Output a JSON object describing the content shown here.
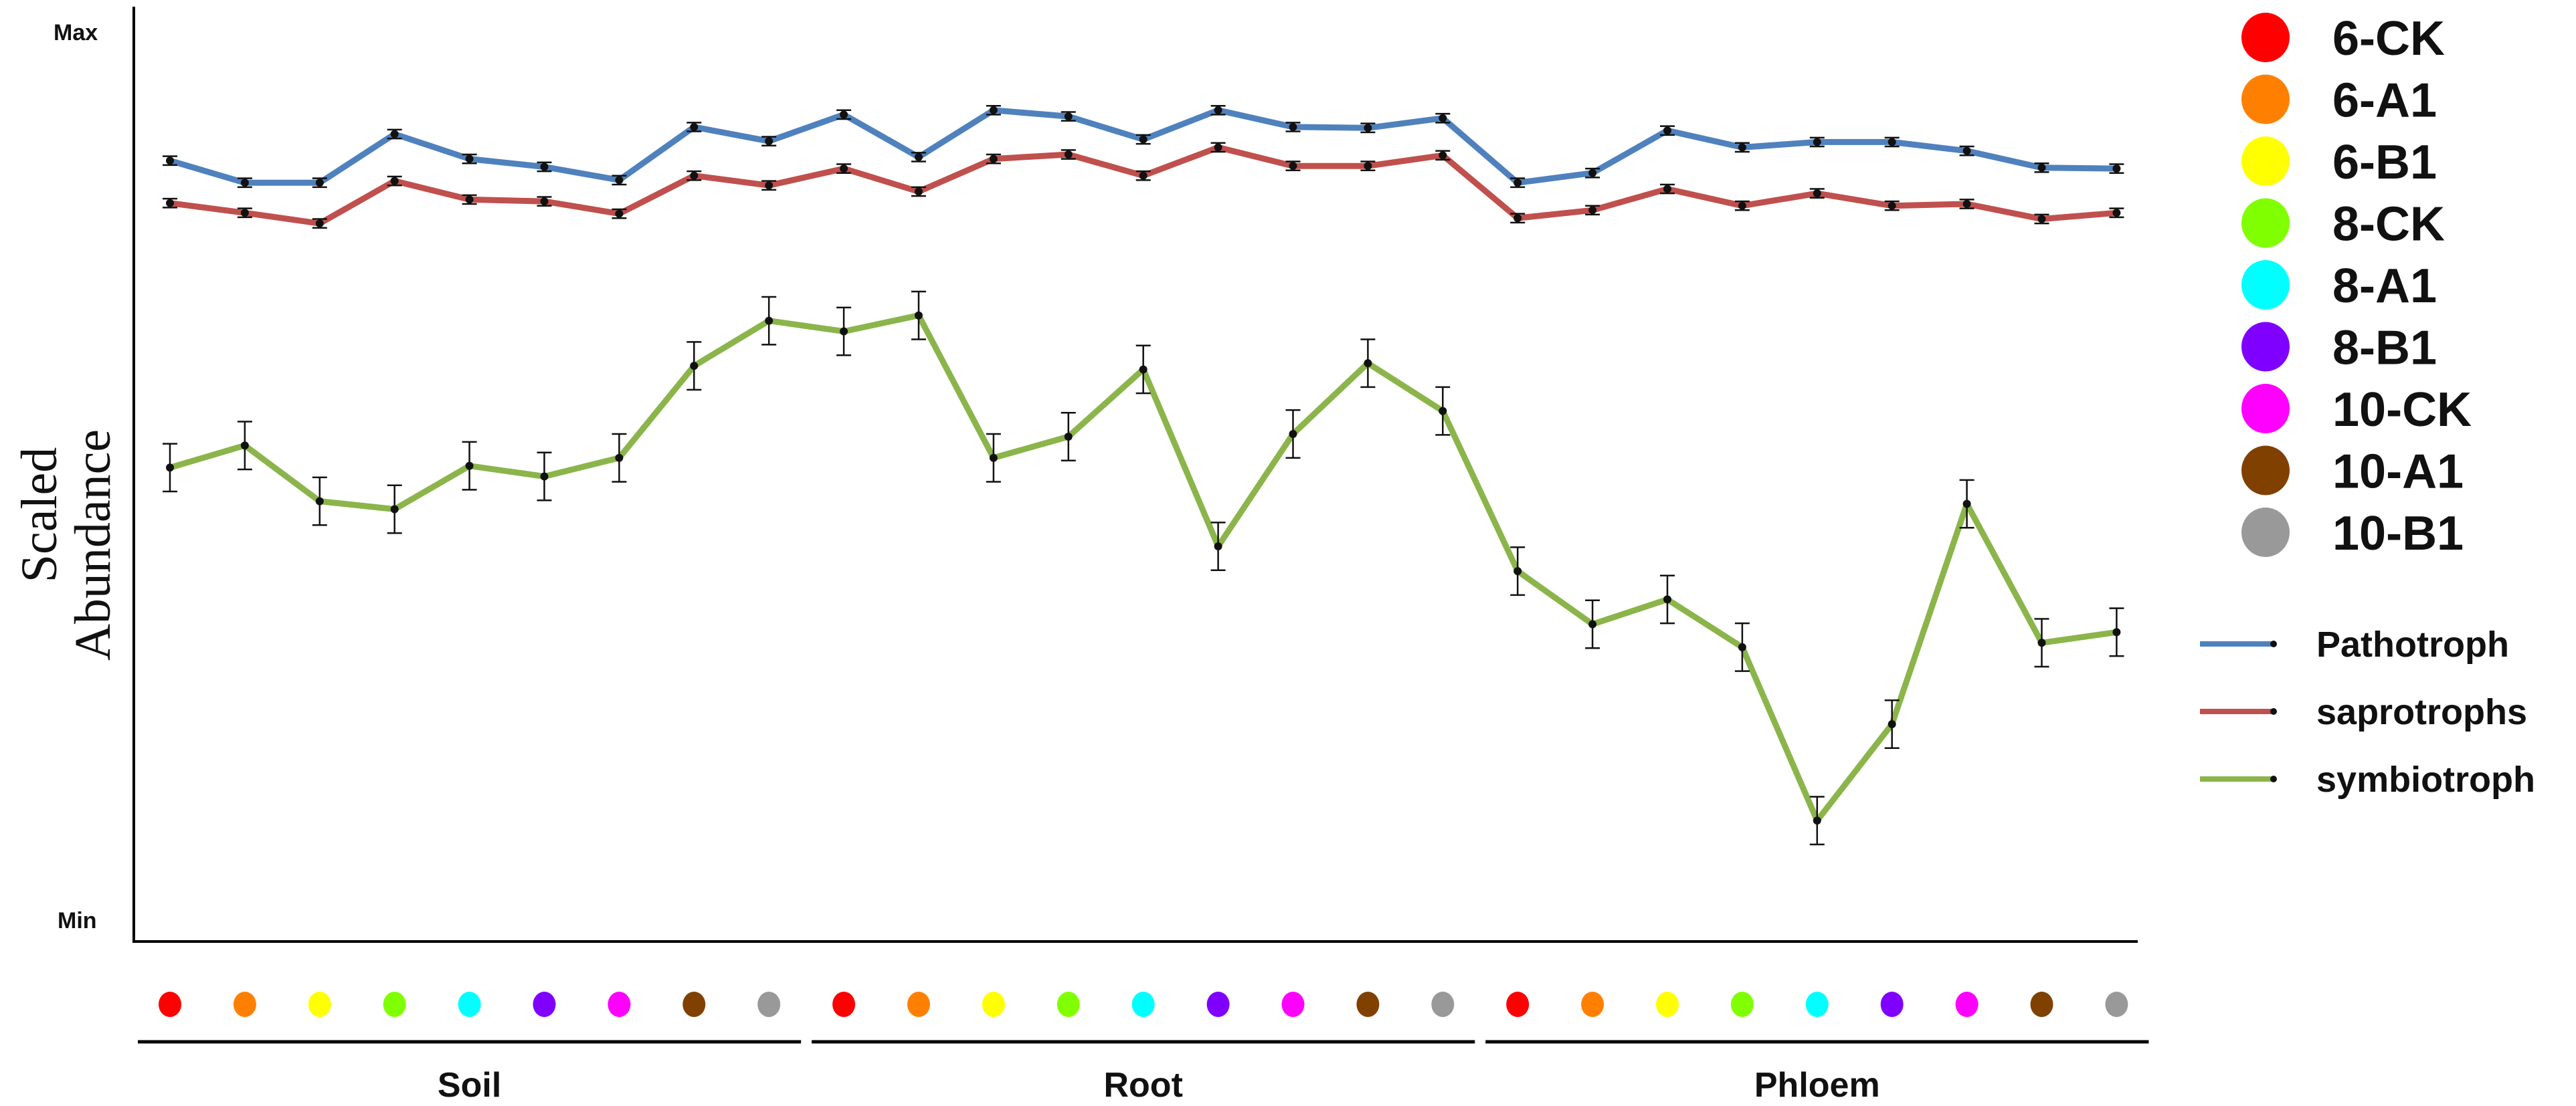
{
  "chart_data": {
    "type": "line",
    "ylabel_lines": [
      "Scaled",
      "Abundance"
    ],
    "y_ticks": {
      "max": "Max",
      "min": "Min"
    },
    "ylim": [
      0,
      100
    ],
    "grid": false,
    "legend_placement": "right",
    "samples": [
      {
        "label": "6-CK",
        "color": "#ff0000"
      },
      {
        "label": "6-A1",
        "color": "#ff8000"
      },
      {
        "label": "6-B1",
        "color": "#ffff00"
      },
      {
        "label": "8-CK",
        "color": "#80ff00"
      },
      {
        "label": "8-A1",
        "color": "#00ffff"
      },
      {
        "label": "8-B1",
        "color": "#8000ff"
      },
      {
        "label": "10-CK",
        "color": "#ff00ff"
      },
      {
        "label": "10-A1",
        "color": "#804000"
      },
      {
        "label": "10-B1",
        "color": "#999999"
      }
    ],
    "groups": [
      "Soil",
      "Root",
      "Phloem"
    ],
    "series": [
      {
        "name": "Pathotroph",
        "color": "#4f81bd",
        "values": [
          86,
          83.5,
          83.5,
          89,
          86.2,
          85.3,
          83.8,
          89.8,
          88.2,
          91.2,
          86.4,
          91.7,
          91,
          88.4,
          91.7,
          89.8,
          89.7,
          90.8,
          83.5,
          84.6,
          89.4,
          87.5,
          88.1,
          88.1,
          87.1,
          85.2,
          85.1
        ],
        "errors": [
          0.5,
          0.5,
          0.5,
          0.5,
          0.5,
          0.5,
          0.5,
          0.5,
          0.5,
          0.5,
          0.5,
          0.5,
          0.5,
          0.5,
          0.5,
          0.5,
          0.5,
          0.5,
          0.5,
          0.5,
          0.5,
          0.5,
          0.5,
          0.5,
          0.5,
          0.5,
          0.5
        ]
      },
      {
        "name": "saprotrophs",
        "color": "#c0504d",
        "values": [
          81.2,
          80.1,
          78.9,
          83.7,
          81.6,
          81.4,
          80,
          84.3,
          83.2,
          85.1,
          82.5,
          86.2,
          86.7,
          84.3,
          87.5,
          85.4,
          85.4,
          86.6,
          79.5,
          80.4,
          82.8,
          80.9,
          82.3,
          80.9,
          81.1,
          79.4,
          80.1
        ],
        "errors": [
          0.5,
          0.5,
          0.5,
          0.5,
          0.5,
          0.5,
          0.5,
          0.5,
          0.5,
          0.5,
          0.5,
          0.5,
          0.5,
          0.5,
          0.5,
          0.5,
          0.5,
          0.5,
          0.5,
          0.5,
          0.5,
          0.5,
          0.5,
          0.5,
          0.5,
          0.5,
          0.5
        ]
      },
      {
        "name": "symbiotroph",
        "color": "#8bb54a",
        "values": [
          51.3,
          53.8,
          47.5,
          46.6,
          51.5,
          50.3,
          52.4,
          62.8,
          67.9,
          66.7,
          68.5,
          52.4,
          54.8,
          62.4,
          42.4,
          55.1,
          63.1,
          57.7,
          39.6,
          33.6,
          36.4,
          31,
          11.4,
          22.3,
          47.2,
          31.5,
          32.7
        ],
        "errors": [
          2.7,
          2.7,
          2.7,
          2.7,
          2.7,
          2.7,
          2.7,
          2.7,
          2.7,
          2.7,
          2.7,
          2.7,
          2.7,
          2.7,
          2.7,
          2.7,
          2.7,
          2.7,
          2.7,
          2.7,
          2.7,
          2.7,
          2.7,
          2.7,
          2.7,
          2.7,
          2.7
        ]
      }
    ]
  }
}
